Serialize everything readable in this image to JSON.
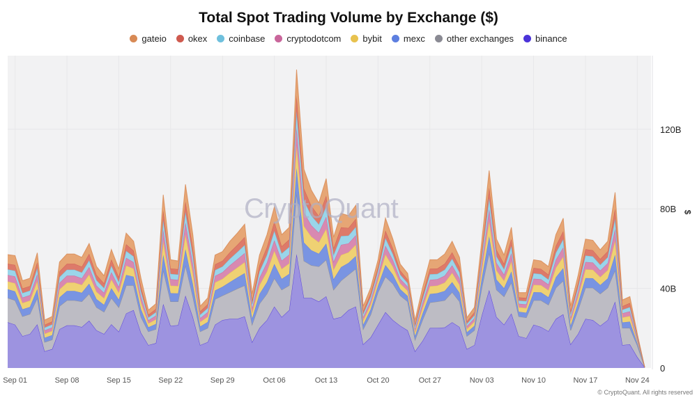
{
  "chart_data": {
    "type": "area",
    "stacked": true,
    "title": "Total Spot Trading Volume by Exchange ($)",
    "ylabel": "$",
    "xlabel": "",
    "ylim": [
      0,
      157
    ],
    "yticks": [
      {
        "value": 0,
        "label": "0"
      },
      {
        "value": 40,
        "label": "40B"
      },
      {
        "value": 80,
        "label": "80B"
      },
      {
        "value": 120,
        "label": "120B"
      }
    ],
    "xticks": [
      "Sep 01",
      "Sep 08",
      "Sep 15",
      "Sep 22",
      "Sep 29",
      "Oct 06",
      "Oct 13",
      "Oct 20",
      "Oct 27",
      "Nov 03",
      "Nov 10",
      "Nov 17",
      "Nov 24"
    ],
    "grid": true,
    "legend_position": "top",
    "watermark": "CryptoQuant",
    "x": [
      "Aug 31",
      "Sep 01",
      "Sep 02",
      "Sep 03",
      "Sep 04",
      "Sep 05",
      "Sep 06",
      "Sep 07",
      "Sep 08",
      "Sep 09",
      "Sep 10",
      "Sep 11",
      "Sep 12",
      "Sep 13",
      "Sep 14",
      "Sep 15",
      "Sep 16",
      "Sep 17",
      "Sep 18",
      "Sep 19",
      "Sep 20",
      "Sep 21",
      "Sep 22",
      "Sep 23",
      "Sep 24",
      "Sep 25",
      "Sep 26",
      "Sep 27",
      "Sep 28",
      "Sep 29",
      "Sep 30",
      "Oct 01",
      "Oct 02",
      "Oct 03",
      "Oct 04",
      "Oct 05",
      "Oct 06",
      "Oct 07",
      "Oct 08",
      "Oct 09",
      "Oct 10",
      "Oct 11",
      "Oct 12",
      "Oct 13",
      "Oct 14",
      "Oct 15",
      "Oct 16",
      "Oct 17",
      "Oct 18",
      "Oct 19",
      "Oct 20",
      "Oct 21",
      "Oct 22",
      "Oct 23",
      "Oct 24",
      "Oct 25",
      "Oct 26",
      "Oct 27",
      "Oct 28",
      "Oct 29",
      "Oct 30",
      "Oct 31",
      "Nov 01",
      "Nov 02",
      "Nov 03",
      "Nov 04",
      "Nov 05",
      "Nov 06",
      "Nov 07",
      "Nov 08",
      "Nov 09",
      "Nov 10",
      "Nov 11",
      "Nov 12",
      "Nov 13",
      "Nov 14",
      "Nov 15",
      "Nov 16",
      "Nov 17",
      "Nov 18",
      "Nov 19",
      "Nov 20",
      "Nov 21",
      "Nov 22",
      "Nov 23",
      "Nov 24",
      "Nov 25"
    ],
    "series": [
      {
        "name": "binance",
        "color": "#4b33d9",
        "fill": "#9d93e0",
        "values": [
          23.0,
          21.8,
          16.0,
          17.1,
          22.0,
          8.4,
          9.5,
          19.5,
          21.4,
          21.4,
          20.6,
          23.8,
          18.9,
          17.1,
          22.0,
          18.3,
          27.4,
          29.1,
          17.7,
          11.5,
          12.5,
          32.2,
          21.2,
          21.5,
          36.4,
          25.6,
          11.5,
          13.0,
          21.8,
          24.1,
          24.7,
          24.7,
          25.9,
          13.0,
          20.1,
          24.1,
          30.9,
          25.6,
          29.1,
          57.3,
          35.2,
          35.2,
          33.4,
          36.0,
          24.7,
          25.6,
          29.1,
          30.9,
          11.9,
          15.4,
          21.8,
          28.1,
          24.1,
          21.2,
          18.9,
          8.4,
          13.6,
          20.1,
          20.1,
          20.4,
          23.0,
          20.6,
          9.5,
          11.5,
          26.4,
          39.2,
          25.6,
          21.8,
          27.4,
          16.0,
          15.0,
          21.8,
          20.6,
          18.5,
          24.7,
          27.0,
          11.9,
          17.1,
          24.7,
          24.1,
          21.2,
          24.1,
          33.4,
          11.5,
          11.9,
          5.5,
          0.3
        ]
      },
      {
        "name": "other exchanges",
        "color": "#87868f",
        "fill": "#bdbcc4",
        "values": [
          12.2,
          12.2,
          9.9,
          10.0,
          13.2,
          4.6,
          4.7,
          11.6,
          12.6,
          12.6,
          12.8,
          13.5,
          11.6,
          11.1,
          13.2,
          12.2,
          14.1,
          12.4,
          7.9,
          6.8,
          7.0,
          17.1,
          12.2,
          11.9,
          15.2,
          10.3,
          6.8,
          7.1,
          12.8,
          12.3,
          13.4,
          15.2,
          15.6,
          8.8,
          12.2,
          13.2,
          14.2,
          13.7,
          12.4,
          31.0,
          18.6,
          16.4,
          17.6,
          18.4,
          14.6,
          18.3,
          17.8,
          19.0,
          7.6,
          11.4,
          16.3,
          17.8,
          18.3,
          15.2,
          14.5,
          5.8,
          10.5,
          12.8,
          13.3,
          13.6,
          15.1,
          12.8,
          6.5,
          7.4,
          13.9,
          18.7,
          13.7,
          14.1,
          15.6,
          9.9,
          10.3,
          12.2,
          13.4,
          13.2,
          15.6,
          16.9,
          7.0,
          12.0,
          15.6,
          16.2,
          16.1,
          16.2,
          15.8,
          8.6,
          8.2,
          5.8,
          0
        ]
      },
      {
        "name": "mexc",
        "color": "#5d7fe0",
        "fill": "#7994e2",
        "values": [
          4.4,
          4.5,
          3.6,
          3.6,
          4.5,
          2.2,
          2.3,
          4.4,
          4.7,
          4.7,
          4.4,
          5.1,
          4.1,
          3.6,
          4.9,
          3.9,
          5.3,
          4.4,
          3.9,
          2.2,
          2.6,
          7.6,
          4.2,
          4.1,
          8.1,
          6.2,
          2.6,
          3.0,
          4.4,
          4.4,
          5.1,
          5.6,
          6.2,
          3.1,
          4.9,
          5.9,
          7.2,
          5.5,
          5.8,
          12.3,
          9.2,
          7.6,
          6.4,
          8.2,
          5.3,
          6.8,
          5.9,
          6.4,
          2.3,
          2.7,
          3.3,
          5.9,
          4.5,
          3.2,
          2.8,
          2.0,
          3.2,
          4.3,
          4.2,
          4.7,
          5.1,
          4.4,
          1.9,
          2.3,
          4.7,
          8.3,
          5.1,
          4.2,
          5.5,
          2.4,
          2.5,
          4.1,
          4.0,
          3.9,
          5.3,
          6.3,
          2.4,
          3.5,
          4.9,
          4.8,
          4.4,
          4.7,
          7.8,
          2.8,
          3.2,
          1.2,
          0
        ]
      },
      {
        "name": "bybit",
        "color": "#e8c24e",
        "fill": "#efd173",
        "values": [
          3.9,
          4.1,
          3.2,
          3.2,
          4.1,
          2.0,
          2.1,
          4.0,
          4.2,
          4.2,
          4.0,
          4.6,
          3.7,
          3.3,
          4.4,
          3.5,
          4.7,
          4.0,
          3.5,
          1.9,
          2.3,
          6.8,
          3.8,
          3.7,
          7.3,
          5.6,
          2.3,
          2.7,
          4.0,
          4.0,
          4.6,
          5.0,
          5.5,
          2.8,
          4.4,
          5.3,
          6.5,
          5.0,
          5.3,
          11.1,
          8.3,
          6.8,
          5.8,
          7.3,
          4.8,
          6.1,
          5.3,
          5.7,
          2.1,
          2.4,
          2.9,
          5.3,
          4.0,
          2.8,
          2.6,
          1.8,
          2.9,
          3.9,
          3.8,
          4.2,
          4.6,
          4.0,
          1.7,
          2.1,
          4.2,
          7.5,
          4.6,
          3.8,
          5.0,
          2.2,
          2.3,
          3.7,
          3.6,
          3.5,
          4.8,
          5.7,
          2.2,
          3.1,
          4.4,
          4.3,
          4.0,
          4.2,
          7.0,
          2.5,
          2.8,
          1.0,
          0
        ]
      },
      {
        "name": "cryptodotcom",
        "color": "#c9669b",
        "fill": "#d889b1",
        "values": [
          3.3,
          3.4,
          2.7,
          2.7,
          3.4,
          1.7,
          1.8,
          3.3,
          3.5,
          3.5,
          3.3,
          3.8,
          3.1,
          2.7,
          3.7,
          2.9,
          3.9,
          3.3,
          2.9,
          1.6,
          1.9,
          5.7,
          3.2,
          3.1,
          6.1,
          4.7,
          1.9,
          2.3,
          3.3,
          3.3,
          3.8,
          4.2,
          4.6,
          2.3,
          3.7,
          4.5,
          5.4,
          4.2,
          4.4,
          9.3,
          6.9,
          5.7,
          4.8,
          6.1,
          4.0,
          5.1,
          4.5,
          4.8,
          1.7,
          2.0,
          2.4,
          4.4,
          3.4,
          2.4,
          2.1,
          1.5,
          2.4,
          3.2,
          3.2,
          3.5,
          3.8,
          3.3,
          1.4,
          1.7,
          3.5,
          6.2,
          3.8,
          3.1,
          4.2,
          1.8,
          1.9,
          3.1,
          3.0,
          2.9,
          4.0,
          4.7,
          1.8,
          2.6,
          3.7,
          3.6,
          3.3,
          3.5,
          5.9,
          2.1,
          2.4,
          0.9,
          0
        ]
      },
      {
        "name": "coinbase",
        "color": "#6fc0dd",
        "fill": "#9ad5ea",
        "values": [
          2.8,
          2.9,
          2.3,
          2.3,
          3.0,
          1.4,
          1.5,
          2.9,
          3.0,
          3.0,
          2.9,
          3.3,
          2.7,
          2.4,
          3.2,
          2.5,
          3.4,
          2.9,
          2.5,
          1.4,
          1.7,
          4.9,
          2.7,
          2.7,
          5.3,
          4.0,
          1.7,
          2.0,
          2.9,
          2.9,
          3.3,
          3.6,
          4.0,
          2.0,
          3.2,
          3.9,
          4.7,
          3.6,
          3.8,
          8.0,
          6.0,
          4.9,
          4.2,
          5.3,
          3.4,
          4.4,
          3.9,
          4.1,
          1.5,
          1.8,
          2.1,
          3.8,
          2.9,
          2.1,
          1.8,
          1.3,
          2.1,
          2.8,
          2.7,
          3.0,
          3.3,
          2.9,
          1.2,
          1.5,
          3.0,
          5.4,
          3.3,
          2.7,
          3.6,
          1.6,
          1.6,
          2.7,
          2.6,
          2.5,
          3.5,
          4.1,
          1.6,
          2.2,
          3.2,
          3.1,
          2.9,
          3.0,
          5.1,
          1.8,
          2.1,
          0.8,
          0
        ]
      },
      {
        "name": "okex",
        "color": "#cf5a4f",
        "fill": "#dd7a6a",
        "values": [
          2.8,
          2.9,
          2.3,
          2.3,
          3.0,
          1.4,
          1.5,
          2.9,
          3.0,
          3.0,
          2.9,
          3.3,
          2.7,
          2.4,
          3.2,
          2.5,
          3.4,
          2.9,
          2.5,
          1.4,
          1.7,
          4.9,
          2.7,
          2.7,
          5.3,
          4.0,
          1.7,
          2.0,
          2.9,
          2.9,
          3.3,
          3.6,
          4.0,
          2.0,
          3.2,
          3.9,
          4.7,
          3.6,
          3.8,
          8.0,
          6.0,
          4.9,
          4.2,
          5.3,
          3.4,
          4.4,
          3.9,
          4.1,
          1.5,
          1.8,
          2.1,
          3.8,
          2.9,
          2.1,
          1.8,
          1.3,
          2.1,
          2.8,
          2.7,
          3.0,
          3.3,
          2.9,
          1.2,
          1.5,
          3.0,
          5.4,
          3.3,
          2.7,
          3.6,
          1.6,
          1.6,
          2.7,
          2.6,
          2.5,
          3.5,
          4.1,
          1.6,
          2.2,
          3.2,
          3.1,
          2.9,
          3.0,
          5.1,
          1.8,
          2.1,
          0.8,
          0
        ]
      },
      {
        "name": "gateio",
        "color": "#d88a55",
        "fill": "#e6a675",
        "values": [
          4.6,
          4.7,
          3.9,
          3.9,
          4.7,
          2.4,
          2.5,
          4.7,
          4.9,
          4.9,
          4.7,
          5.2,
          4.2,
          3.8,
          5.0,
          4.1,
          5.6,
          4.7,
          4.2,
          2.3,
          2.6,
          7.9,
          4.4,
          4.1,
          8.6,
          6.6,
          2.6,
          3.1,
          4.7,
          4.6,
          5.5,
          5.9,
          6.5,
          3.3,
          5.1,
          6.2,
          7.4,
          5.8,
          6.1,
          13.0,
          9.7,
          7.9,
          6.6,
          8.6,
          5.5,
          7.0,
          6.2,
          6.8,
          2.5,
          2.8,
          3.5,
          6.3,
          4.7,
          3.2,
          3.1,
          2.0,
          3.5,
          4.5,
          4.4,
          4.9,
          5.5,
          4.7,
          1.9,
          2.5,
          5.0,
          8.6,
          5.4,
          4.4,
          5.8,
          2.4,
          2.7,
          4.1,
          4.0,
          4.0,
          5.6,
          6.5,
          2.6,
          3.7,
          5.1,
          5.0,
          4.6,
          5.0,
          8.2,
          3.1,
          3.2,
          1.1,
          0
        ]
      }
    ]
  },
  "legend_order": [
    "gateio",
    "okex",
    "coinbase",
    "cryptodotcom",
    "bybit",
    "mexc",
    "other exchanges",
    "binance"
  ],
  "footer": "© CryptoQuant. All rights reserved"
}
